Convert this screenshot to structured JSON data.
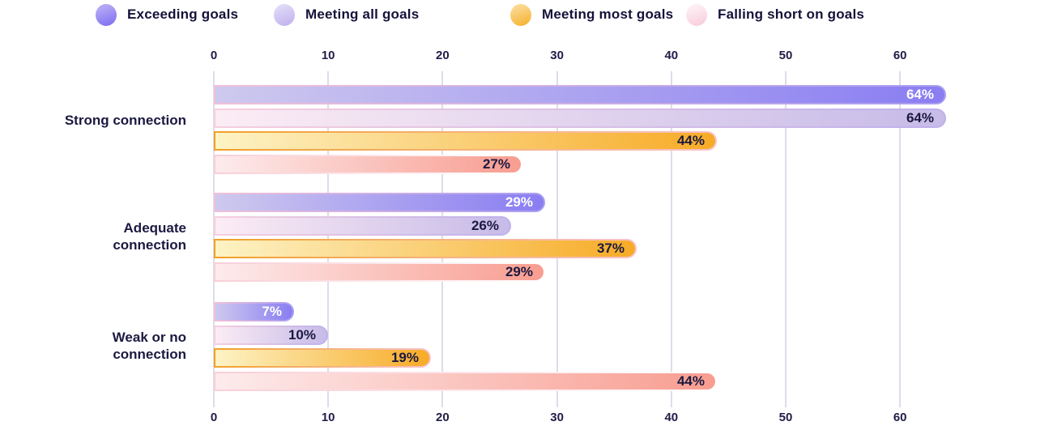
{
  "legend": {
    "items": [
      {
        "label": "Exceeding goals",
        "swatch_start": "#b2a6f6",
        "swatch_end": "#8273f0"
      },
      {
        "label": "Meeting all goals",
        "swatch_start": "#ded7f6",
        "swatch_end": "#c2b4ee"
      },
      {
        "label": "Meeting most goals",
        "swatch_start": "#fbd78f",
        "swatch_end": "#f6b434"
      },
      {
        "label": "Falling short on goals",
        "swatch_start": "#fdeef3",
        "swatch_end": "#f8cfdc"
      }
    ]
  },
  "chart_data": {
    "type": "bar",
    "orientation": "horizontal",
    "title": "",
    "categories": [
      "Strong connection",
      "Adequate connection",
      "Weak or no connection"
    ],
    "series": [
      {
        "name": "Exceeding goals",
        "values": [
          64,
          29,
          7
        ],
        "bar_gradient": [
          "#cec9ee",
          "#8a7df2"
        ],
        "border_gradient": [
          "#f2c0d8",
          "#a99df0"
        ],
        "label_color": "#ffffff"
      },
      {
        "name": "Meeting all goals",
        "values": [
          64,
          26,
          10
        ],
        "bar_gradient": [
          "#fcecf4",
          "#c7bbe8"
        ],
        "border_gradient": [
          "#f6cede",
          "#beb1ec"
        ],
        "label_color": "#1b1940"
      },
      {
        "name": "Meeting most goals",
        "values": [
          44,
          37,
          19
        ],
        "bar_gradient": [
          "#fdf3c5",
          "#f7ab27"
        ],
        "border_gradient": [
          "#f2a028",
          "#f8c2cc"
        ],
        "label_color": "#1b1940"
      },
      {
        "name": "Falling short on goals",
        "values": [
          27,
          29,
          44
        ],
        "bar_gradient": [
          "#fdebec",
          "#f89d90"
        ],
        "border_gradient": [
          "#f8cfd8",
          "#ffffff"
        ],
        "label_color": "#1b1940"
      }
    ],
    "value_suffix": "%",
    "data_labels": [
      [
        "64%",
        "29%",
        "7%"
      ],
      [
        "64%",
        "26%",
        "10%"
      ],
      [
        "44%",
        "37%",
        "19%"
      ],
      [
        "27%",
        "29%",
        "44%"
      ]
    ],
    "axis_ticks": [
      0,
      10,
      20,
      30,
      40,
      50,
      60
    ],
    "xlim": [
      0,
      64
    ],
    "grid": "vertical",
    "legend_position": "top",
    "tick_labels_position": "top and bottom"
  },
  "colors": {
    "background": "#ffffff",
    "text": "#1b1940",
    "gridline": "#dfdce9"
  }
}
